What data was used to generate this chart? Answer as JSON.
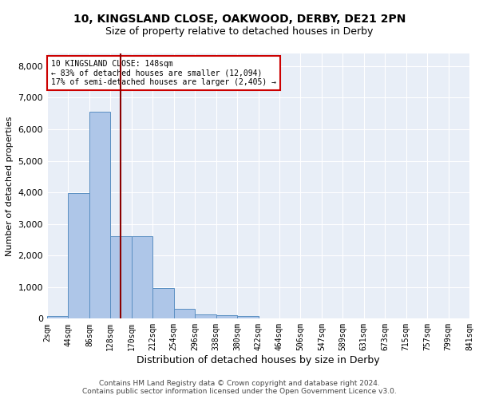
{
  "title_line1": "10, KINGSLAND CLOSE, OAKWOOD, DERBY, DE21 2PN",
  "title_line2": "Size of property relative to detached houses in Derby",
  "xlabel": "Distribution of detached houses by size in Derby",
  "ylabel": "Number of detached properties",
  "bar_values": [
    75,
    3980,
    6560,
    2600,
    2600,
    960,
    310,
    130,
    110,
    90,
    0,
    0,
    0,
    0,
    0,
    0,
    0,
    0,
    0,
    0
  ],
  "bin_labels": [
    "2sqm",
    "44sqm",
    "86sqm",
    "128sqm",
    "170sqm",
    "212sqm",
    "254sqm",
    "296sqm",
    "338sqm",
    "380sqm",
    "422sqm",
    "464sqm",
    "506sqm",
    "547sqm",
    "589sqm",
    "631sqm",
    "673sqm",
    "715sqm",
    "757sqm",
    "799sqm",
    "841sqm"
  ],
  "bar_color": "#aec6e8",
  "bar_edge_color": "#5a8fc2",
  "vline_color": "#8b0000",
  "annotation_text": "10 KINGSLAND CLOSE: 148sqm\n← 83% of detached houses are smaller (12,094)\n17% of semi-detached houses are larger (2,405) →",
  "annotation_box_color": "#ffffff",
  "annotation_box_edge": "#cc0000",
  "ylim": [
    0,
    8400
  ],
  "yticks": [
    0,
    1000,
    2000,
    3000,
    4000,
    5000,
    6000,
    7000,
    8000
  ],
  "background_color": "#e8eef7",
  "grid_color": "#ffffff",
  "footer_text": "Contains HM Land Registry data © Crown copyright and database right 2024.\nContains public sector information licensed under the Open Government Licence v3.0."
}
